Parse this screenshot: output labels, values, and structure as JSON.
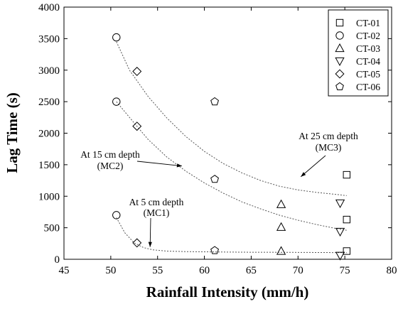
{
  "chart_data": {
    "type": "scatter",
    "xlabel": "Rainfall Intensity (mm/h)",
    "ylabel": "Lag Time (s)",
    "xlim": [
      45,
      80
    ],
    "ylim": [
      0,
      4000
    ],
    "xticks": [
      45,
      50,
      55,
      60,
      65,
      70,
      75,
      80
    ],
    "yticks": [
      0,
      500,
      1000,
      1500,
      2000,
      2500,
      3000,
      3500,
      4000
    ],
    "grid": false,
    "legend_position": "top-right",
    "series": [
      {
        "name": "CT-01",
        "marker": "square",
        "x": [
          75.2,
          75.2,
          75.2
        ],
        "y": [
          1340,
          630,
          130
        ]
      },
      {
        "name": "CT-02",
        "marker": "circle",
        "x": [
          50.6,
          50.6,
          50.6
        ],
        "y": [
          3520,
          2500,
          700
        ]
      },
      {
        "name": "CT-03",
        "marker": "triangle-up",
        "x": [
          68.2,
          68.2,
          68.2
        ],
        "y": [
          870,
          510,
          130
        ]
      },
      {
        "name": "CT-04",
        "marker": "triangle-down",
        "x": [
          74.5,
          74.5,
          74.5
        ],
        "y": [
          890,
          440,
          60
        ]
      },
      {
        "name": "CT-05",
        "marker": "diamond",
        "x": [
          52.8,
          52.8,
          52.8
        ],
        "y": [
          2980,
          2110,
          260
        ]
      },
      {
        "name": "CT-06",
        "marker": "pentagon",
        "x": [
          61.1,
          61.1,
          61.1
        ],
        "y": [
          2500,
          1270,
          140
        ]
      }
    ],
    "fit_curves": [
      {
        "x": [
          50.6,
          52,
          54,
          56,
          58,
          60,
          62,
          64,
          66,
          68,
          70,
          72,
          74,
          75.2
        ],
        "y": [
          3450,
          3000,
          2580,
          2240,
          1950,
          1710,
          1520,
          1370,
          1250,
          1160,
          1100,
          1060,
          1030,
          1010
        ]
      },
      {
        "x": [
          50.6,
          52,
          54,
          56,
          58,
          60,
          62,
          64,
          66,
          68,
          70,
          72,
          74,
          75.2
        ],
        "y": [
          2500,
          2250,
          1900,
          1620,
          1400,
          1210,
          1050,
          910,
          800,
          700,
          620,
          550,
          490,
          460
        ]
      },
      {
        "x": [
          50.6,
          51.5,
          52.5,
          53.5,
          54.5,
          56,
          58,
          60,
          62,
          65,
          68,
          71,
          74,
          75.2
        ],
        "y": [
          660,
          420,
          260,
          185,
          150,
          130,
          122,
          118,
          115,
          112,
          110,
          108,
          106,
          105
        ]
      }
    ],
    "annotations": [
      {
        "lines": [
          "At 25 cm depth",
          "(MC3)"
        ],
        "arrow_to": [
          70.3,
          1310
        ]
      },
      {
        "lines": [
          "At 15 cm depth",
          "(MC2)"
        ],
        "arrow_to": [
          57.6,
          1480
        ]
      },
      {
        "lines": [
          "At 5 cm depth",
          "(MC1)"
        ],
        "arrow_to": [
          54.2,
          195
        ]
      }
    ]
  }
}
